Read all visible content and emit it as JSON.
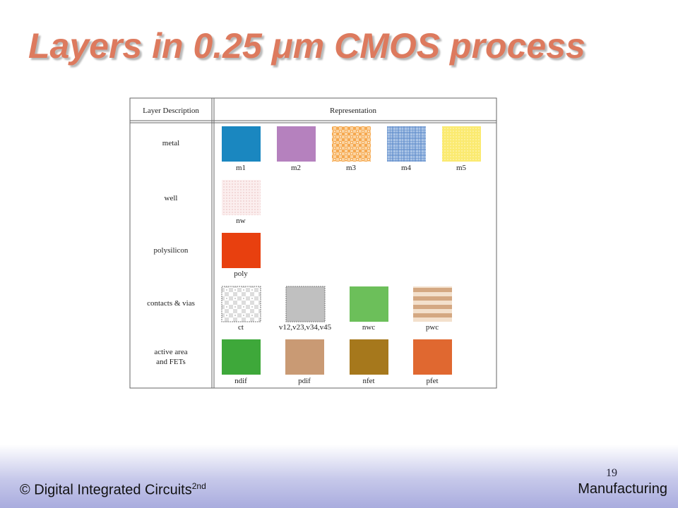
{
  "slide": {
    "title": "Layers in 0.25 μm CMOS process",
    "table": {
      "headers": [
        "Layer Description",
        "Representation"
      ],
      "rows": [
        {
          "label": [
            "metal"
          ],
          "items": [
            "m1",
            "m2",
            "m3",
            "m4",
            "m5"
          ]
        },
        {
          "label": [
            "well"
          ],
          "items": [
            "nw"
          ]
        },
        {
          "label": [
            "polysilicon"
          ],
          "items": [
            "poly"
          ]
        },
        {
          "label": [
            "contacts & vias"
          ],
          "items": [
            "ct",
            "v12,v23,v34,v45",
            "nwc",
            "pwc"
          ]
        },
        {
          "label": [
            "active area",
            "and FETs"
          ],
          "items": [
            "ndif",
            "pdif",
            "nfet",
            "pfet"
          ]
        }
      ]
    },
    "footer": {
      "left": "© Digital Integrated Circuits",
      "left_sup": "2nd",
      "right": "Manufacturing",
      "page": "19"
    }
  }
}
